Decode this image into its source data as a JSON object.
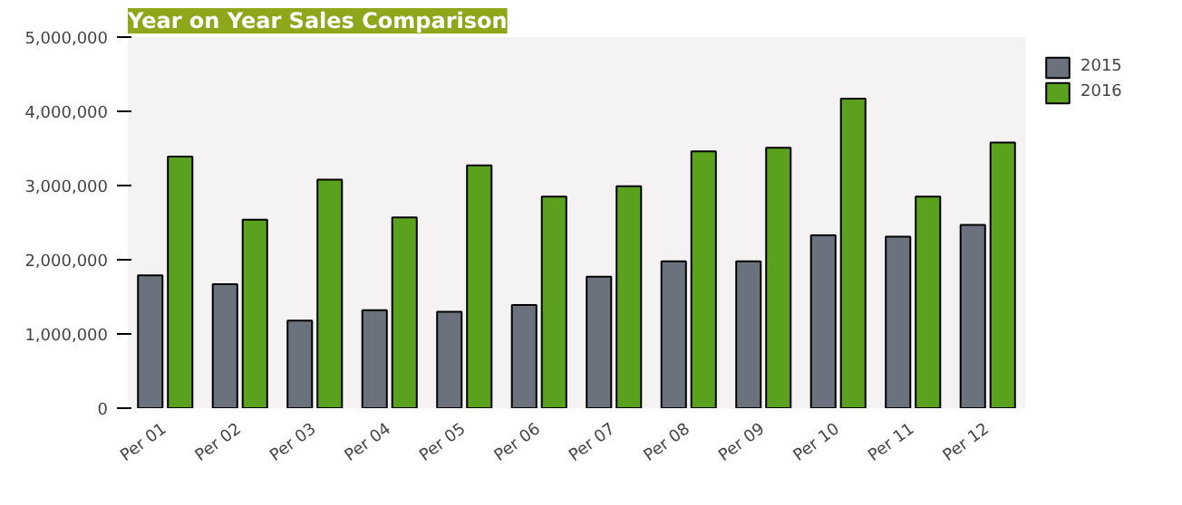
{
  "chart_data": {
    "type": "bar",
    "title": "Year on Year Sales Comparison",
    "categories": [
      "Per 01",
      "Per 02",
      "Per 03",
      "Per 04",
      "Per 05",
      "Per 06",
      "Per 07",
      "Per 08",
      "Per 09",
      "Per 10",
      "Per 11",
      "Per 12"
    ],
    "series": [
      {
        "name": "2015",
        "color": "#6b717d",
        "values": [
          1790000,
          1670000,
          1180000,
          1320000,
          1300000,
          1390000,
          1770000,
          1980000,
          1980000,
          2330000,
          2310000,
          2470000
        ]
      },
      {
        "name": "2016",
        "color": "#5aa11e",
        "values": [
          3390000,
          2540000,
          3080000,
          2570000,
          3270000,
          2850000,
          2990000,
          3460000,
          3510000,
          4170000,
          2850000,
          3580000
        ]
      }
    ],
    "ylim": [
      0,
      5000000
    ],
    "yticks": [
      {
        "value": 0,
        "label": "0"
      },
      {
        "value": 1000000,
        "label": "1,000,000"
      },
      {
        "value": 2000000,
        "label": "2,000,000"
      },
      {
        "value": 3000000,
        "label": "3,000,000"
      },
      {
        "value": 4000000,
        "label": "4,000,000"
      },
      {
        "value": 5000000,
        "label": "5,000,000"
      }
    ],
    "grid": false,
    "legend": "top right"
  }
}
